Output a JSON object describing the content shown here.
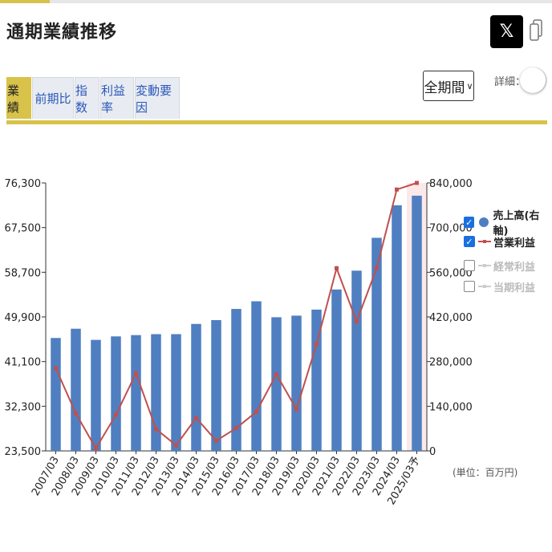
{
  "header": {
    "title": "通期業績推移",
    "x_button_label": "𝕏"
  },
  "tabs": [
    {
      "label": "業績",
      "active": true
    },
    {
      "label": "前期比",
      "active": false
    },
    {
      "label": "指数",
      "active": false
    },
    {
      "label": "利益率",
      "active": false
    },
    {
      "label": "変動要因",
      "active": false
    }
  ],
  "controls": {
    "period_value": "全期間",
    "detail_label": "詳細：",
    "detail_on": false
  },
  "colors": {
    "bar": "#4f7fc1",
    "line": "#c0504d",
    "accent": "#d8c24a",
    "checkbox_on": "#1a6fe0"
  },
  "legend": [
    {
      "label": "売上高(右軸)",
      "checked": true,
      "marker": "circle"
    },
    {
      "label": "営業利益",
      "checked": true,
      "marker": "line"
    },
    {
      "label": "経常利益",
      "checked": false,
      "marker": "line"
    },
    {
      "label": "当期利益",
      "checked": false,
      "marker": "line"
    }
  ],
  "unit_label": "(単位：百万円)",
  "chart_data": {
    "type": "bar",
    "categories": [
      "2007/03",
      "2008/03",
      "2009/03",
      "2010/03",
      "2011/03",
      "2012/03",
      "2013/03",
      "2014/03",
      "2015/03",
      "2016/03",
      "2017/03",
      "2018/03",
      "2019/03",
      "2020/03",
      "2021/03",
      "2022/03",
      "2023/03",
      "2024/03",
      "2025/03予"
    ],
    "series": [
      {
        "name": "売上高(右軸)",
        "type": "bar",
        "axis": "right",
        "values": [
          354000,
          383000,
          348000,
          359000,
          363000,
          366000,
          366000,
          398000,
          410000,
          445000,
          469000,
          419000,
          424000,
          443000,
          506000,
          565000,
          668000,
          770000,
          800000
        ]
      },
      {
        "name": "営業利益",
        "type": "line",
        "axis": "left",
        "values": [
          39800,
          30900,
          24000,
          30600,
          38800,
          27800,
          24600,
          30000,
          25500,
          28000,
          31200,
          38600,
          31700,
          44500,
          59500,
          49000,
          59500,
          75000,
          76300
        ]
      }
    ],
    "left_axis": {
      "ticks": [
        "23,500",
        "32,300",
        "41,100",
        "49,900",
        "58,700",
        "67,500",
        "76,300"
      ],
      "range": [
        23500,
        76300
      ]
    },
    "right_axis": {
      "ticks": [
        "0",
        "140,000",
        "280,000",
        "420,000",
        "560,000",
        "700,000",
        "840,000"
      ],
      "range": [
        0,
        840000
      ]
    },
    "legend_position": "right",
    "grid": false,
    "forecast_highlight": "2025/03予"
  }
}
